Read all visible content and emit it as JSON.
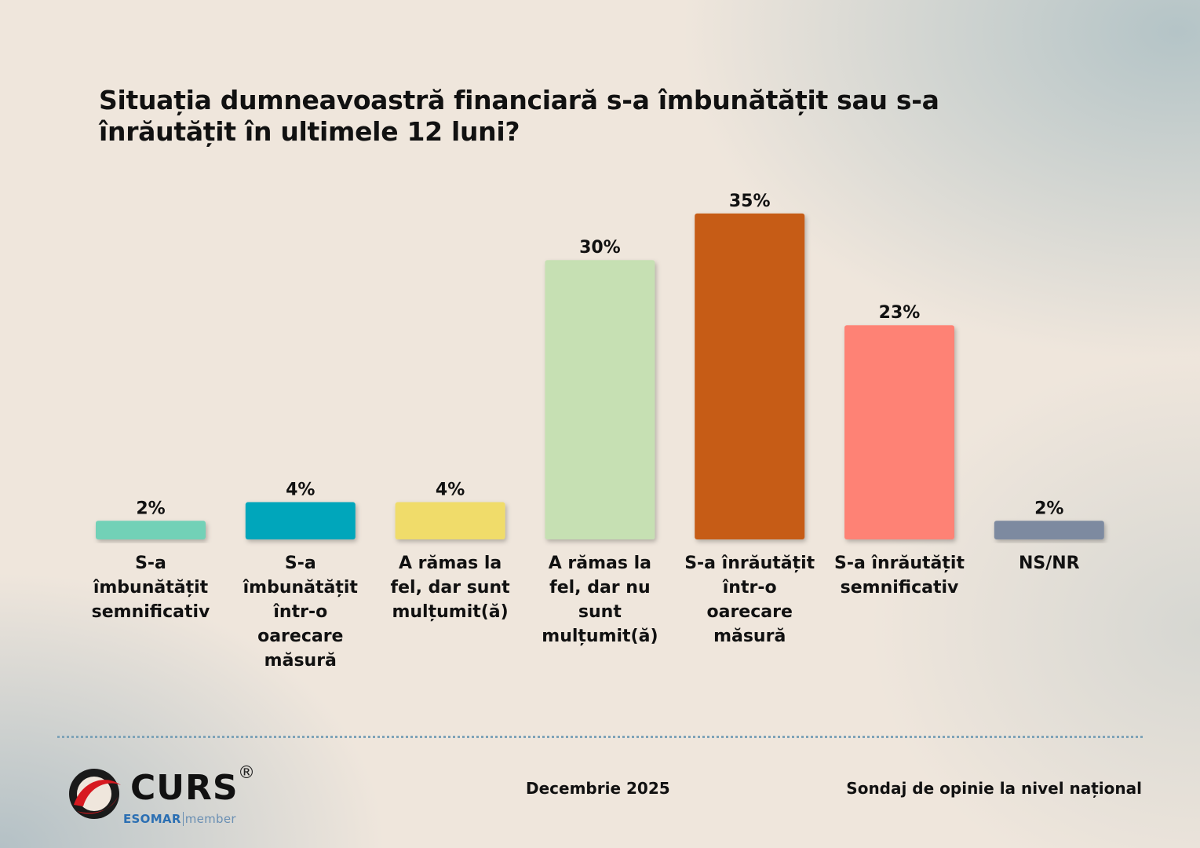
{
  "chart_data": {
    "type": "bar",
    "title": "Situația dumneavoastră financiară s-a îmbunătățit sau s-a înrăutățit în ultimele 12 luni?",
    "categories": [
      "S-a\nîmbunătățit\nsemnificativ",
      "S-a\nîmbunătățit\nîntr-o\noarecare\nmăsură",
      "A rămas la\nfel, dar sunt\nmulțumit(ă)",
      "A rămas la\nfel, dar nu\nsunt\nmulțumit(ă)",
      "S-a înrăutățit\nîntr-o\noarecare\nmăsură",
      "S-a înrăutățit\nsemnificativ",
      "NS/NR"
    ],
    "values": [
      2,
      4,
      4,
      30,
      35,
      23,
      2
    ],
    "value_labels": [
      "2%",
      "4%",
      "4%",
      "30%",
      "35%",
      "23%",
      "2%"
    ],
    "colors": [
      "#72d1b7",
      "#00a6bb",
      "#f0dc6a",
      "#c6e0b3",
      "#c65b12",
      "#fe8274",
      "#7d8aa0"
    ],
    "ylim": [
      0,
      35
    ],
    "grid": false,
    "legend": "none"
  },
  "footer": {
    "brand": "CURS",
    "registered": "®",
    "esomar": "ESOMAR",
    "esomar_member": "member",
    "date": "Decembrie 2025",
    "survey": "Sondaj de opinie la nivel național"
  }
}
